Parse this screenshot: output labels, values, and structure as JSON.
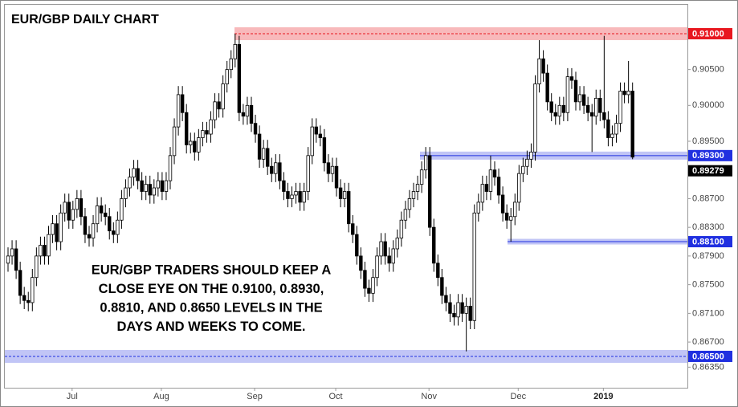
{
  "chart_data": {
    "type": "candlestick",
    "title": "EUR/GBP DAILY CHART",
    "annotation": [
      "EUR/GBP TRADERS SHOULD KEEP A",
      "CLOSE EYE ON THE 0.9100, 0.8930,",
      "0.8810, AND 0.8650 LEVELS IN THE",
      "DAYS AND WEEKS TO COME."
    ],
    "categories": [
      null,
      null,
      null,
      null,
      null,
      null,
      null,
      null,
      null,
      null,
      null,
      null,
      null,
      null,
      null,
      null,
      "Jul",
      null,
      null,
      null,
      null,
      null,
      null,
      null,
      null,
      null,
      null,
      null,
      null,
      null,
      null,
      null,
      null,
      null,
      null,
      null,
      null,
      null,
      "Aug",
      null,
      null,
      null,
      null,
      null,
      null,
      null,
      null,
      null,
      null,
      null,
      null,
      null,
      null,
      null,
      null,
      null,
      null,
      null,
      null,
      null,
      null,
      "Sep",
      null,
      null,
      null,
      null,
      null,
      null,
      null,
      null,
      null,
      null,
      null,
      null,
      null,
      null,
      null,
      null,
      null,
      null,
      null,
      "Oct",
      null,
      null,
      null,
      null,
      null,
      null,
      null,
      null,
      null,
      null,
      null,
      null,
      null,
      null,
      null,
      null,
      null,
      null,
      null,
      null,
      null,
      null,
      "Nov",
      null,
      null,
      null,
      null,
      null,
      null,
      null,
      null,
      null,
      null,
      null,
      null,
      null,
      null,
      null,
      null,
      null,
      null,
      null,
      null,
      null,
      "Dec",
      null,
      null,
      null,
      null,
      null,
      null,
      null,
      null,
      null,
      null,
      null,
      null,
      null,
      null,
      null,
      null,
      null,
      null,
      null,
      null,
      "2019",
      null,
      null,
      null,
      null,
      null,
      null,
      null
    ],
    "open": [
      0.878,
      0.879,
      0.88,
      0.877,
      0.8735,
      0.8728,
      0.8725,
      0.876,
      0.879,
      0.8805,
      0.879,
      0.882,
      0.8835,
      0.881,
      0.885,
      0.8865,
      0.884,
      0.8855,
      0.887,
      0.8845,
      0.882,
      0.8815,
      0.8835,
      0.886,
      0.885,
      0.8845,
      0.8825,
      0.882,
      0.884,
      0.887,
      0.8885,
      0.89,
      0.8912,
      0.8895,
      0.888,
      0.889,
      0.8875,
      0.8885,
      0.8895,
      0.888,
      0.8895,
      0.893,
      0.897,
      0.9015,
      0.899,
      0.8945,
      0.895,
      0.8935,
      0.8955,
      0.8965,
      0.896,
      0.898,
      0.9005,
      0.8995,
      0.903,
      0.905,
      0.9065,
      0.9085,
      0.899,
      0.8985,
      0.9,
      0.8975,
      0.896,
      0.8925,
      0.894,
      0.8915,
      0.8905,
      0.892,
      0.8895,
      0.888,
      0.887,
      0.8875,
      0.888,
      0.8865,
      0.888,
      0.893,
      0.897,
      0.896,
      0.8955,
      0.892,
      0.8905,
      0.8915,
      0.8885,
      0.887,
      0.888,
      0.8835,
      0.882,
      0.879,
      0.877,
      0.8745,
      0.8738,
      0.876,
      0.879,
      0.881,
      0.879,
      0.878,
      0.88,
      0.8815,
      0.884,
      0.8855,
      0.887,
      0.888,
      0.889,
      0.891,
      0.893,
      0.883,
      0.878,
      0.876,
      0.8735,
      0.8725,
      0.871,
      0.8705,
      0.8725,
      0.871,
      0.872,
      0.87,
      0.885,
      0.8865,
      0.889,
      0.888,
      0.891,
      0.89,
      0.8875,
      0.885,
      0.884,
      0.8845,
      0.8865,
      0.8905,
      0.8915,
      0.8925,
      0.8935,
      0.903,
      0.9065,
      0.9045,
      0.9005,
      0.899,
      0.8985,
      0.9,
      0.899,
      0.904,
      0.9035,
      0.9005,
      0.9015,
      0.9,
      0.899,
      0.8985,
      0.901,
      0.899,
      0.898,
      0.8955,
      0.896,
      0.8975,
      0.902,
      0.9015,
      0.902
    ],
    "high": [
      0.8802,
      0.8812,
      0.8812,
      0.8782,
      0.8747,
      0.874,
      0.8772,
      0.8802,
      0.8817,
      0.8817,
      0.8832,
      0.8847,
      0.8847,
      0.8862,
      0.8877,
      0.8877,
      0.8867,
      0.8882,
      0.8882,
      0.8857,
      0.8832,
      0.8847,
      0.8872,
      0.8872,
      0.8862,
      0.8857,
      0.8837,
      0.8852,
      0.8882,
      0.8897,
      0.8912,
      0.8924,
      0.8924,
      0.8907,
      0.8902,
      0.8902,
      0.8897,
      0.8907,
      0.8907,
      0.8907,
      0.8942,
      0.8982,
      0.9027,
      0.9027,
      0.9002,
      0.8962,
      0.8962,
      0.8967,
      0.8977,
      0.8977,
      0.8992,
      0.9017,
      0.9017,
      0.9042,
      0.9062,
      0.9077,
      0.91,
      0.9097,
      0.9002,
      0.9012,
      0.9012,
      0.8987,
      0.8972,
      0.8952,
      0.8952,
      0.8927,
      0.8932,
      0.8932,
      0.8907,
      0.8892,
      0.8887,
      0.8892,
      0.8892,
      0.8892,
      0.8942,
      0.8982,
      0.8982,
      0.8972,
      0.8967,
      0.8932,
      0.8927,
      0.8927,
      0.8897,
      0.8892,
      0.8892,
      0.8847,
      0.8832,
      0.8802,
      0.8782,
      0.8757,
      0.8772,
      0.8802,
      0.8822,
      0.8822,
      0.8802,
      0.8812,
      0.8827,
      0.8852,
      0.8867,
      0.8882,
      0.8892,
      0.8902,
      0.8922,
      0.8942,
      0.8942,
      0.8842,
      0.8792,
      0.8772,
      0.8747,
      0.8737,
      0.8722,
      0.8737,
      0.8737,
      0.8732,
      0.8732,
      0.8862,
      0.8877,
      0.8902,
      0.8902,
      0.893,
      0.8922,
      0.8912,
      0.8887,
      0.8862,
      0.8857,
      0.8877,
      0.8917,
      0.8927,
      0.8937,
      0.8947,
      0.9042,
      0.9091,
      0.9077,
      0.9057,
      0.9017,
      0.9002,
      0.9012,
      0.9012,
      0.9052,
      0.9052,
      0.9047,
      0.9027,
      0.9027,
      0.9012,
      0.9002,
      0.9022,
      0.9022,
      0.9097,
      0.8992,
      0.8972,
      0.8987,
      0.9032,
      0.9032,
      0.9062,
      0.9032
    ],
    "low": [
      0.8768,
      0.8778,
      0.8758,
      0.8723,
      0.8716,
      0.8713,
      0.8713,
      0.8748,
      0.8778,
      0.8778,
      0.8778,
      0.8808,
      0.8798,
      0.8798,
      0.8838,
      0.8828,
      0.8828,
      0.8843,
      0.8833,
      0.8808,
      0.8803,
      0.8803,
      0.8823,
      0.8838,
      0.8833,
      0.8813,
      0.8808,
      0.8808,
      0.8828,
      0.8858,
      0.8873,
      0.8888,
      0.8883,
      0.8868,
      0.8868,
      0.8863,
      0.8863,
      0.8873,
      0.8868,
      0.8868,
      0.8883,
      0.8918,
      0.8958,
      0.8978,
      0.8933,
      0.8933,
      0.8923,
      0.8923,
      0.8943,
      0.8948,
      0.8948,
      0.8968,
      0.8983,
      0.8983,
      0.9018,
      0.9038,
      0.9053,
      0.8978,
      0.8973,
      0.8973,
      0.8963,
      0.8948,
      0.8913,
      0.8913,
      0.8903,
      0.8893,
      0.8893,
      0.8883,
      0.8868,
      0.8858,
      0.8858,
      0.8863,
      0.8853,
      0.8853,
      0.8868,
      0.8918,
      0.8948,
      0.8943,
      0.8908,
      0.8893,
      0.8893,
      0.8873,
      0.8858,
      0.8858,
      0.8823,
      0.8808,
      0.8778,
      0.8758,
      0.8733,
      0.8726,
      0.8726,
      0.8748,
      0.8778,
      0.8778,
      0.8768,
      0.8768,
      0.8788,
      0.8803,
      0.8828,
      0.8843,
      0.8858,
      0.8868,
      0.8878,
      0.8898,
      0.8818,
      0.8768,
      0.8748,
      0.8723,
      0.8713,
      0.8698,
      0.8693,
      0.8693,
      0.8698,
      0.8657,
      0.8688,
      0.8688,
      0.8838,
      0.8853,
      0.8868,
      0.8868,
      0.8888,
      0.8863,
      0.8838,
      0.8828,
      0.881,
      0.8833,
      0.8853,
      0.8893,
      0.8903,
      0.8913,
      0.8923,
      0.9018,
      0.9033,
      0.8993,
      0.8978,
      0.8973,
      0.8973,
      0.8978,
      0.8978,
      0.9023,
      0.8993,
      0.8993,
      0.8988,
      0.8978,
      0.8935,
      0.8973,
      0.8978,
      0.8968,
      0.8943,
      0.8943,
      0.8948,
      0.8963,
      0.9003,
      0.9003,
      0.8925
    ],
    "close": [
      0.879,
      0.88,
      0.877,
      0.8735,
      0.8728,
      0.8725,
      0.876,
      0.879,
      0.8805,
      0.879,
      0.882,
      0.8835,
      0.881,
      0.885,
      0.8865,
      0.884,
      0.8855,
      0.887,
      0.8845,
      0.882,
      0.8815,
      0.8835,
      0.886,
      0.885,
      0.8845,
      0.8825,
      0.882,
      0.884,
      0.887,
      0.8885,
      0.89,
      0.8912,
      0.8895,
      0.888,
      0.889,
      0.8875,
      0.8885,
      0.8895,
      0.888,
      0.8895,
      0.893,
      0.897,
      0.9015,
      0.899,
      0.8945,
      0.895,
      0.8935,
      0.8955,
      0.8965,
      0.896,
      0.898,
      0.9005,
      0.8995,
      0.903,
      0.905,
      0.9065,
      0.9085,
      0.899,
      0.8985,
      0.9,
      0.8975,
      0.896,
      0.8925,
      0.894,
      0.8915,
      0.8905,
      0.892,
      0.8895,
      0.888,
      0.887,
      0.8875,
      0.888,
      0.8865,
      0.888,
      0.893,
      0.897,
      0.896,
      0.8955,
      0.892,
      0.8905,
      0.8915,
      0.8885,
      0.887,
      0.888,
      0.8835,
      0.882,
      0.879,
      0.877,
      0.8745,
      0.8738,
      0.876,
      0.879,
      0.881,
      0.879,
      0.878,
      0.88,
      0.8815,
      0.884,
      0.8855,
      0.887,
      0.888,
      0.889,
      0.891,
      0.893,
      0.883,
      0.878,
      0.876,
      0.8735,
      0.8725,
      0.871,
      0.8705,
      0.8725,
      0.871,
      0.872,
      0.87,
      0.885,
      0.8865,
      0.889,
      0.888,
      0.891,
      0.89,
      0.8875,
      0.885,
      0.884,
      0.8845,
      0.8865,
      0.8905,
      0.8915,
      0.8925,
      0.8935,
      0.903,
      0.9065,
      0.9045,
      0.9005,
      0.899,
      0.8985,
      0.9,
      0.899,
      0.904,
      0.9035,
      0.9005,
      0.9015,
      0.9,
      0.899,
      0.8985,
      0.901,
      0.899,
      0.898,
      0.8955,
      0.896,
      0.8975,
      0.902,
      0.9015,
      0.902,
      0.89279
    ],
    "up_color": "#ffffff",
    "down_color": "#000000",
    "ylim": [
      0.86063,
      0.91414
    ],
    "yticks": [
      {
        "value": 0.905,
        "label": "0.90500"
      },
      {
        "value": 0.9,
        "label": "0.90000"
      },
      {
        "value": 0.895,
        "label": "0.89500"
      },
      {
        "value": 0.887,
        "label": "0.88700"
      },
      {
        "value": 0.883,
        "label": "0.88300"
      },
      {
        "value": 0.879,
        "label": "0.87900"
      },
      {
        "value": 0.875,
        "label": "0.87500"
      },
      {
        "value": 0.871,
        "label": "0.87100"
      },
      {
        "value": 0.867,
        "label": "0.86700"
      },
      {
        "value": 0.8635,
        "label": "0.86350"
      }
    ],
    "levels": [
      {
        "value": 0.91,
        "label": "0.91000",
        "color": "#e8171f"
      },
      {
        "value": 0.893,
        "label": "0.89300",
        "color": "#2030e0"
      },
      {
        "value": 0.881,
        "label": "0.88100",
        "color": "#2030e0"
      },
      {
        "value": 0.865,
        "label": "0.86500",
        "color": "#2030e0"
      }
    ]
  }
}
